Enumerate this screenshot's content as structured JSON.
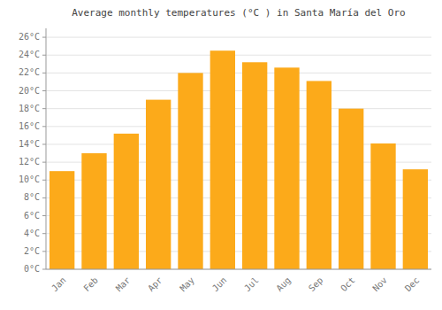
{
  "chart_data": {
    "type": "bar",
    "title": "Average monthly temperatures (°C ) in Santa María del Oro",
    "categories": [
      "Jan",
      "Feb",
      "Mar",
      "Apr",
      "May",
      "Jun",
      "Jul",
      "Aug",
      "Sep",
      "Oct",
      "Nov",
      "Dec"
    ],
    "values": [
      11.0,
      13.0,
      15.2,
      19.0,
      22.0,
      24.5,
      23.2,
      22.6,
      21.1,
      18.0,
      14.1,
      11.2
    ],
    "color": "#FCAA1A",
    "ylim": [
      0,
      27
    ],
    "yticks": [
      {
        "value": 0,
        "label": "0°C"
      },
      {
        "value": 2,
        "label": "2°C"
      },
      {
        "value": 4,
        "label": "4°C"
      },
      {
        "value": 6,
        "label": "6°C"
      },
      {
        "value": 8,
        "label": "8°C"
      },
      {
        "value": 10,
        "label": "10°C"
      },
      {
        "value": 12,
        "label": "12°C"
      },
      {
        "value": 14,
        "label": "14°C"
      },
      {
        "value": 16,
        "label": "16°C"
      },
      {
        "value": 18,
        "label": "18°C"
      },
      {
        "value": 20,
        "label": "20°C"
      },
      {
        "value": 22,
        "label": "22°C"
      },
      {
        "value": 24,
        "label": "24°C"
      },
      {
        "value": 26,
        "label": "26°C"
      }
    ],
    "grid": true
  }
}
